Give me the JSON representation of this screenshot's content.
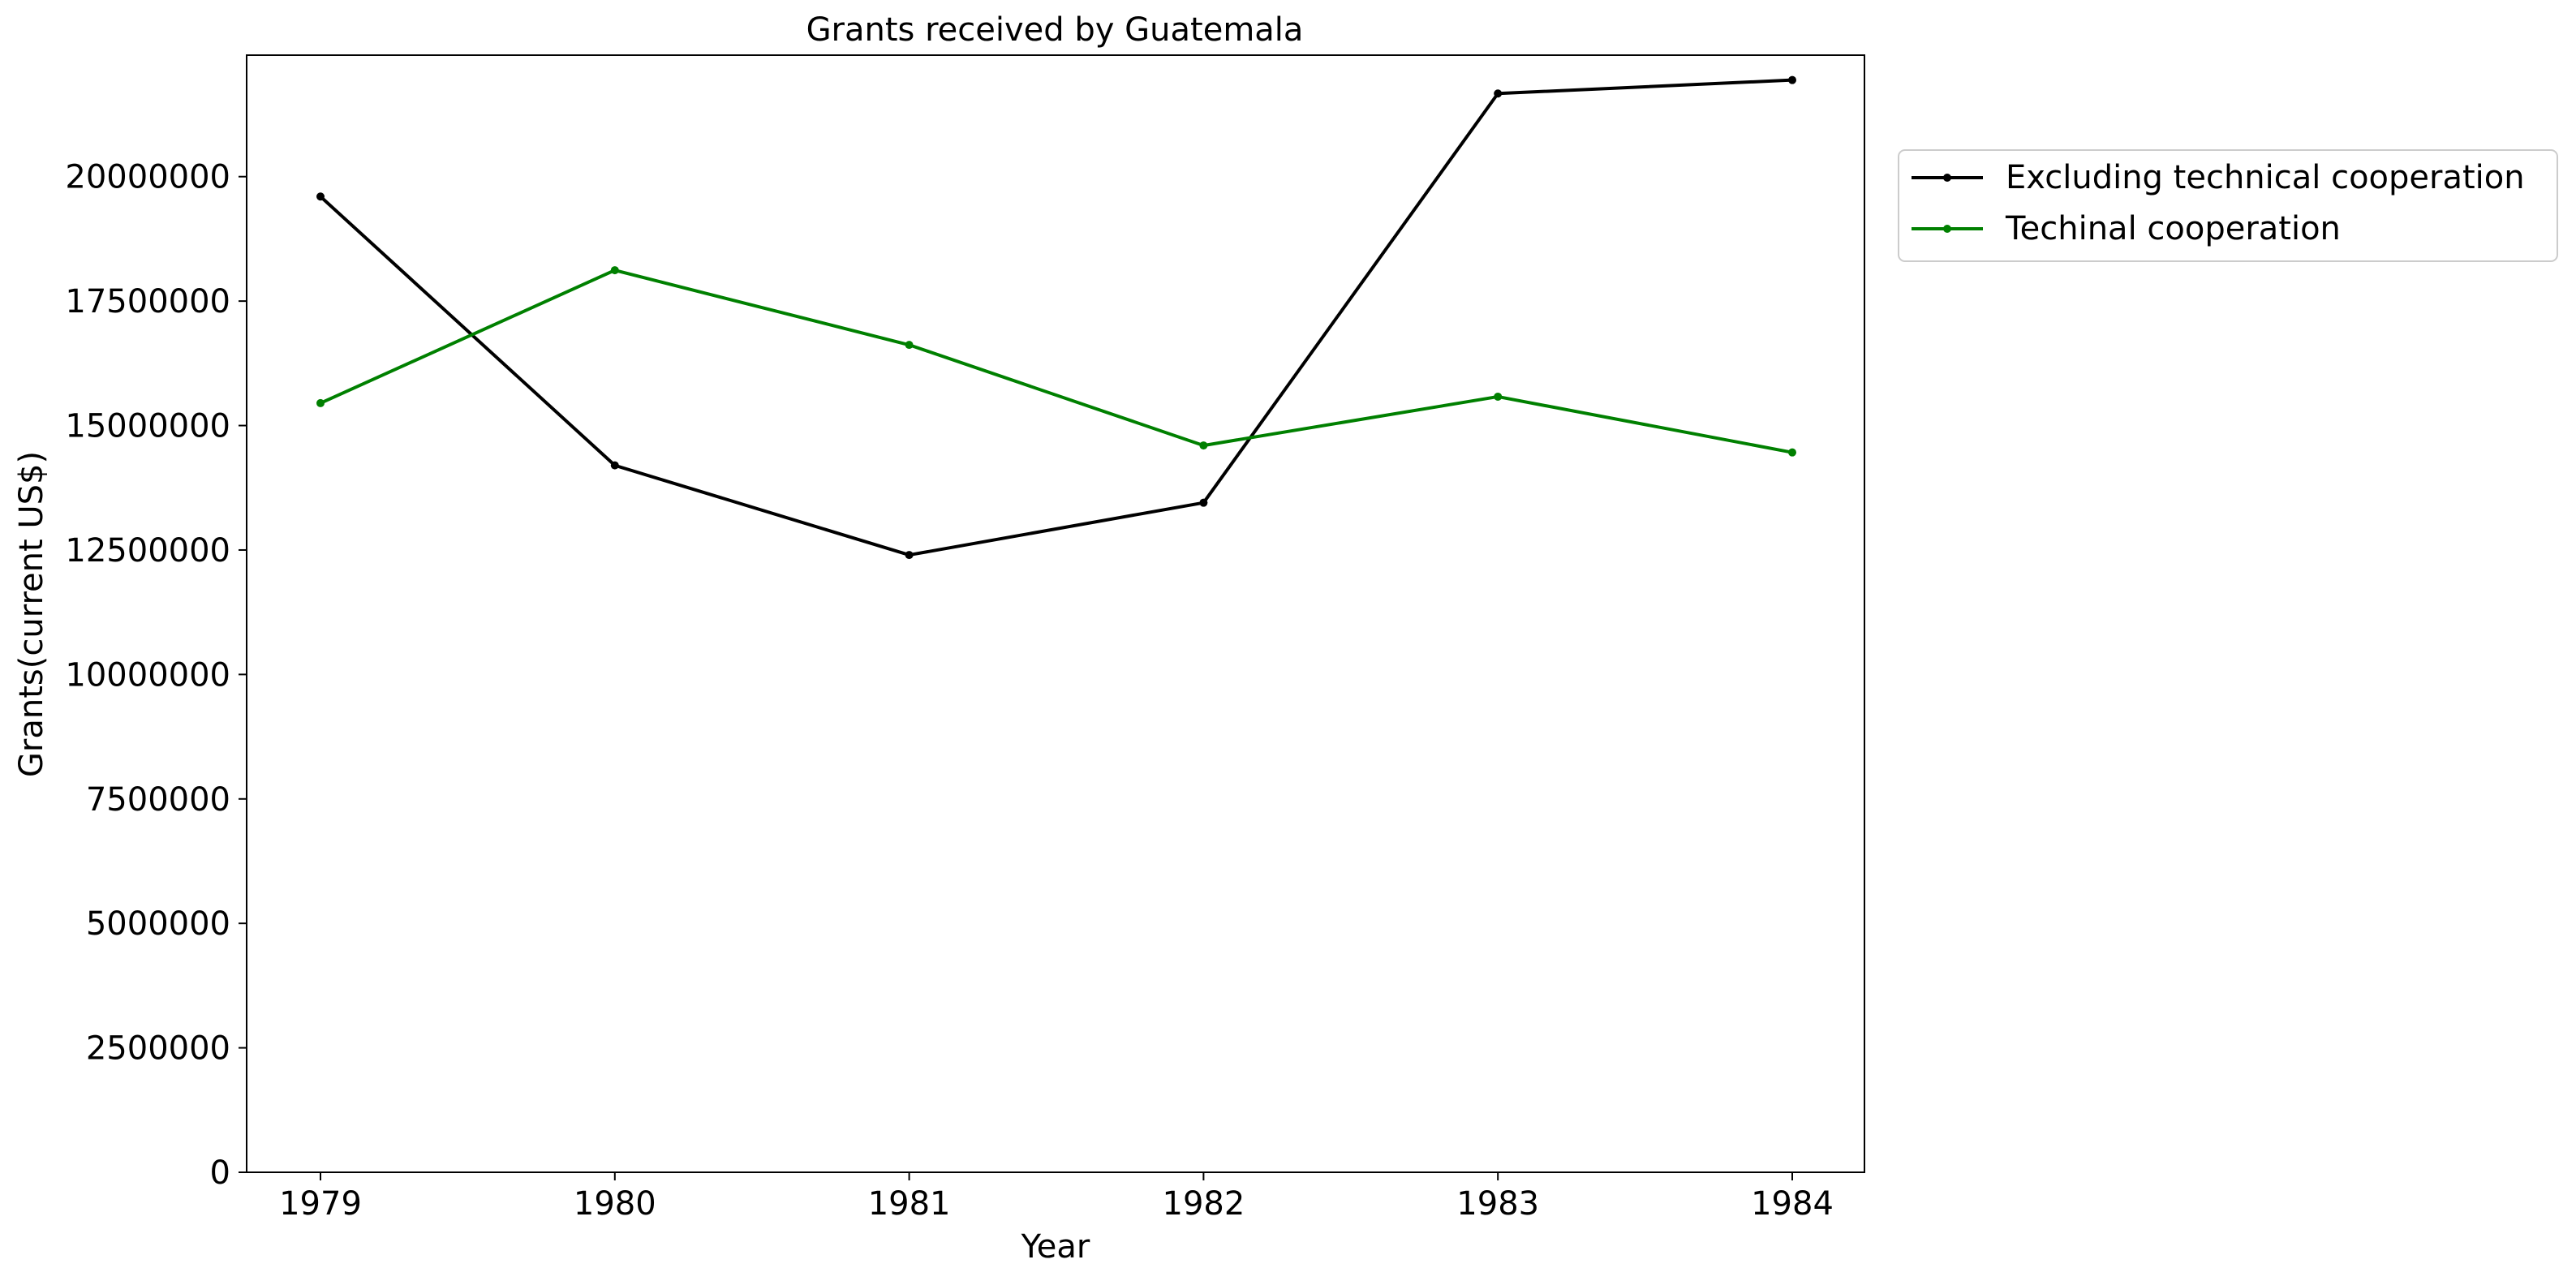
{
  "chart_data": {
    "type": "line",
    "title": "Grants received by Guatemala",
    "xlabel": "Year",
    "ylabel": "Grants(current US$)",
    "x": [
      "1979",
      "1980",
      "1981",
      "1982",
      "1983",
      "1984"
    ],
    "ylim": [
      0,
      22440000
    ],
    "yticks": [
      0,
      2500000,
      5000000,
      7500000,
      10000000,
      12500000,
      15000000,
      17500000,
      20000000
    ],
    "ytick_labels": [
      "0",
      "2500000",
      "5000000",
      "7500000",
      "10000000",
      "12500000",
      "15000000",
      "17500000",
      "20000000"
    ],
    "grid": false,
    "legend_position": "outside upper right",
    "series": [
      {
        "name": "Excluding technical cooperation",
        "color": "#000000",
        "values": [
          19600000,
          14200000,
          12400000,
          13450000,
          21670000,
          21940000
        ]
      },
      {
        "name": "Techinal cooperation",
        "color": "#008000",
        "values": [
          15450000,
          18120000,
          16620000,
          14600000,
          15580000,
          14460000
        ]
      }
    ]
  }
}
